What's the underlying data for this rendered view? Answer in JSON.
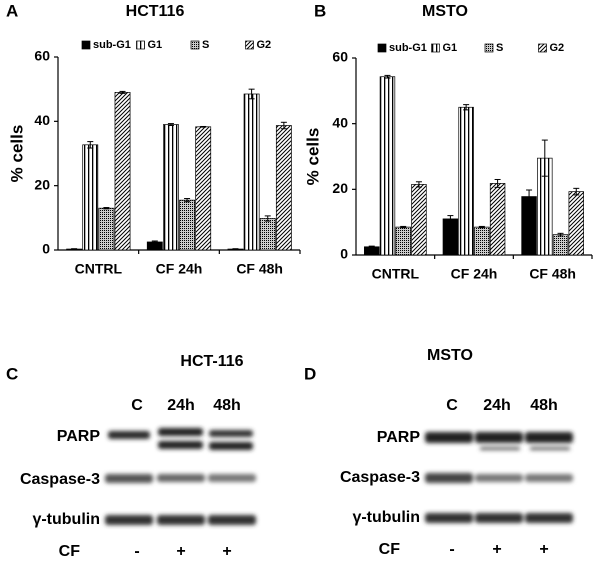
{
  "chart_data": [
    {
      "type": "bar",
      "panel_label": "A",
      "title": "HCT116",
      "y_label": "% cells",
      "categories": [
        "CNTRL",
        "CF 24h",
        "CF 48h"
      ],
      "series": [
        {
          "name": "sub-G1",
          "color": "#000000",
          "pattern": "solid",
          "values": [
            0.3,
            2.5,
            0.3
          ],
          "errors": [
            0.1,
            0.3,
            0.1
          ]
        },
        {
          "name": "G1",
          "color": "#000000",
          "pattern": "vertical",
          "values": [
            32.7,
            39,
            48.5
          ],
          "errors": [
            1,
            0.3,
            1.5
          ]
        },
        {
          "name": "S",
          "color": "#000000",
          "pattern": "dots",
          "values": [
            13,
            15.5,
            9.8
          ],
          "errors": [
            0.2,
            0.5,
            0.8
          ]
        },
        {
          "name": "G2",
          "color": "#000000",
          "pattern": "diagonal",
          "values": [
            49,
            38.3,
            38.7
          ],
          "errors": [
            0.3,
            0.1,
            1
          ]
        }
      ],
      "ylim": [
        0,
        60
      ],
      "yticks": [
        0,
        20,
        40,
        60
      ],
      "legend": "top"
    },
    {
      "type": "bar",
      "panel_label": "B",
      "title": "MSTO",
      "y_label": "% cells",
      "categories": [
        "CNTRL",
        "CF 24h",
        "CF 48h"
      ],
      "series": [
        {
          "name": "sub-G1",
          "color": "#000000",
          "pattern": "solid",
          "values": [
            2.5,
            11,
            17.8
          ],
          "errors": [
            0.2,
            1,
            2
          ]
        },
        {
          "name": "G1",
          "color": "#000000",
          "pattern": "vertical",
          "values": [
            54.3,
            45,
            29.5
          ],
          "errors": [
            0.4,
            0.8,
            5.5
          ]
        },
        {
          "name": "S",
          "color": "#000000",
          "pattern": "dots",
          "values": [
            8.5,
            8.5,
            6.2
          ],
          "errors": [
            0.2,
            0.2,
            0.4
          ]
        },
        {
          "name": "G2",
          "color": "#000000",
          "pattern": "diagonal",
          "values": [
            21.5,
            21.8,
            19.3
          ],
          "errors": [
            0.8,
            1.2,
            1
          ]
        }
      ],
      "ylim": [
        0,
        60
      ],
      "yticks": [
        0,
        20,
        40,
        60
      ],
      "legend": "top"
    }
  ],
  "blots": [
    {
      "panel_label": "C",
      "title": "HCT-116",
      "lanes": [
        "C",
        "24h",
        "48h"
      ],
      "rows": [
        "PARP",
        "Caspase-3",
        "γ-tubulin"
      ],
      "treatment": "CF",
      "treatment_marks": [
        "-",
        "+",
        "+"
      ]
    },
    {
      "panel_label": "D",
      "title": "MSTO",
      "lanes": [
        "C",
        "24h",
        "48h"
      ],
      "rows": [
        "PARP",
        "Caspase-3",
        "γ-tubulin"
      ],
      "treatment": "CF",
      "treatment_marks": [
        "-",
        "+",
        "+"
      ]
    }
  ]
}
